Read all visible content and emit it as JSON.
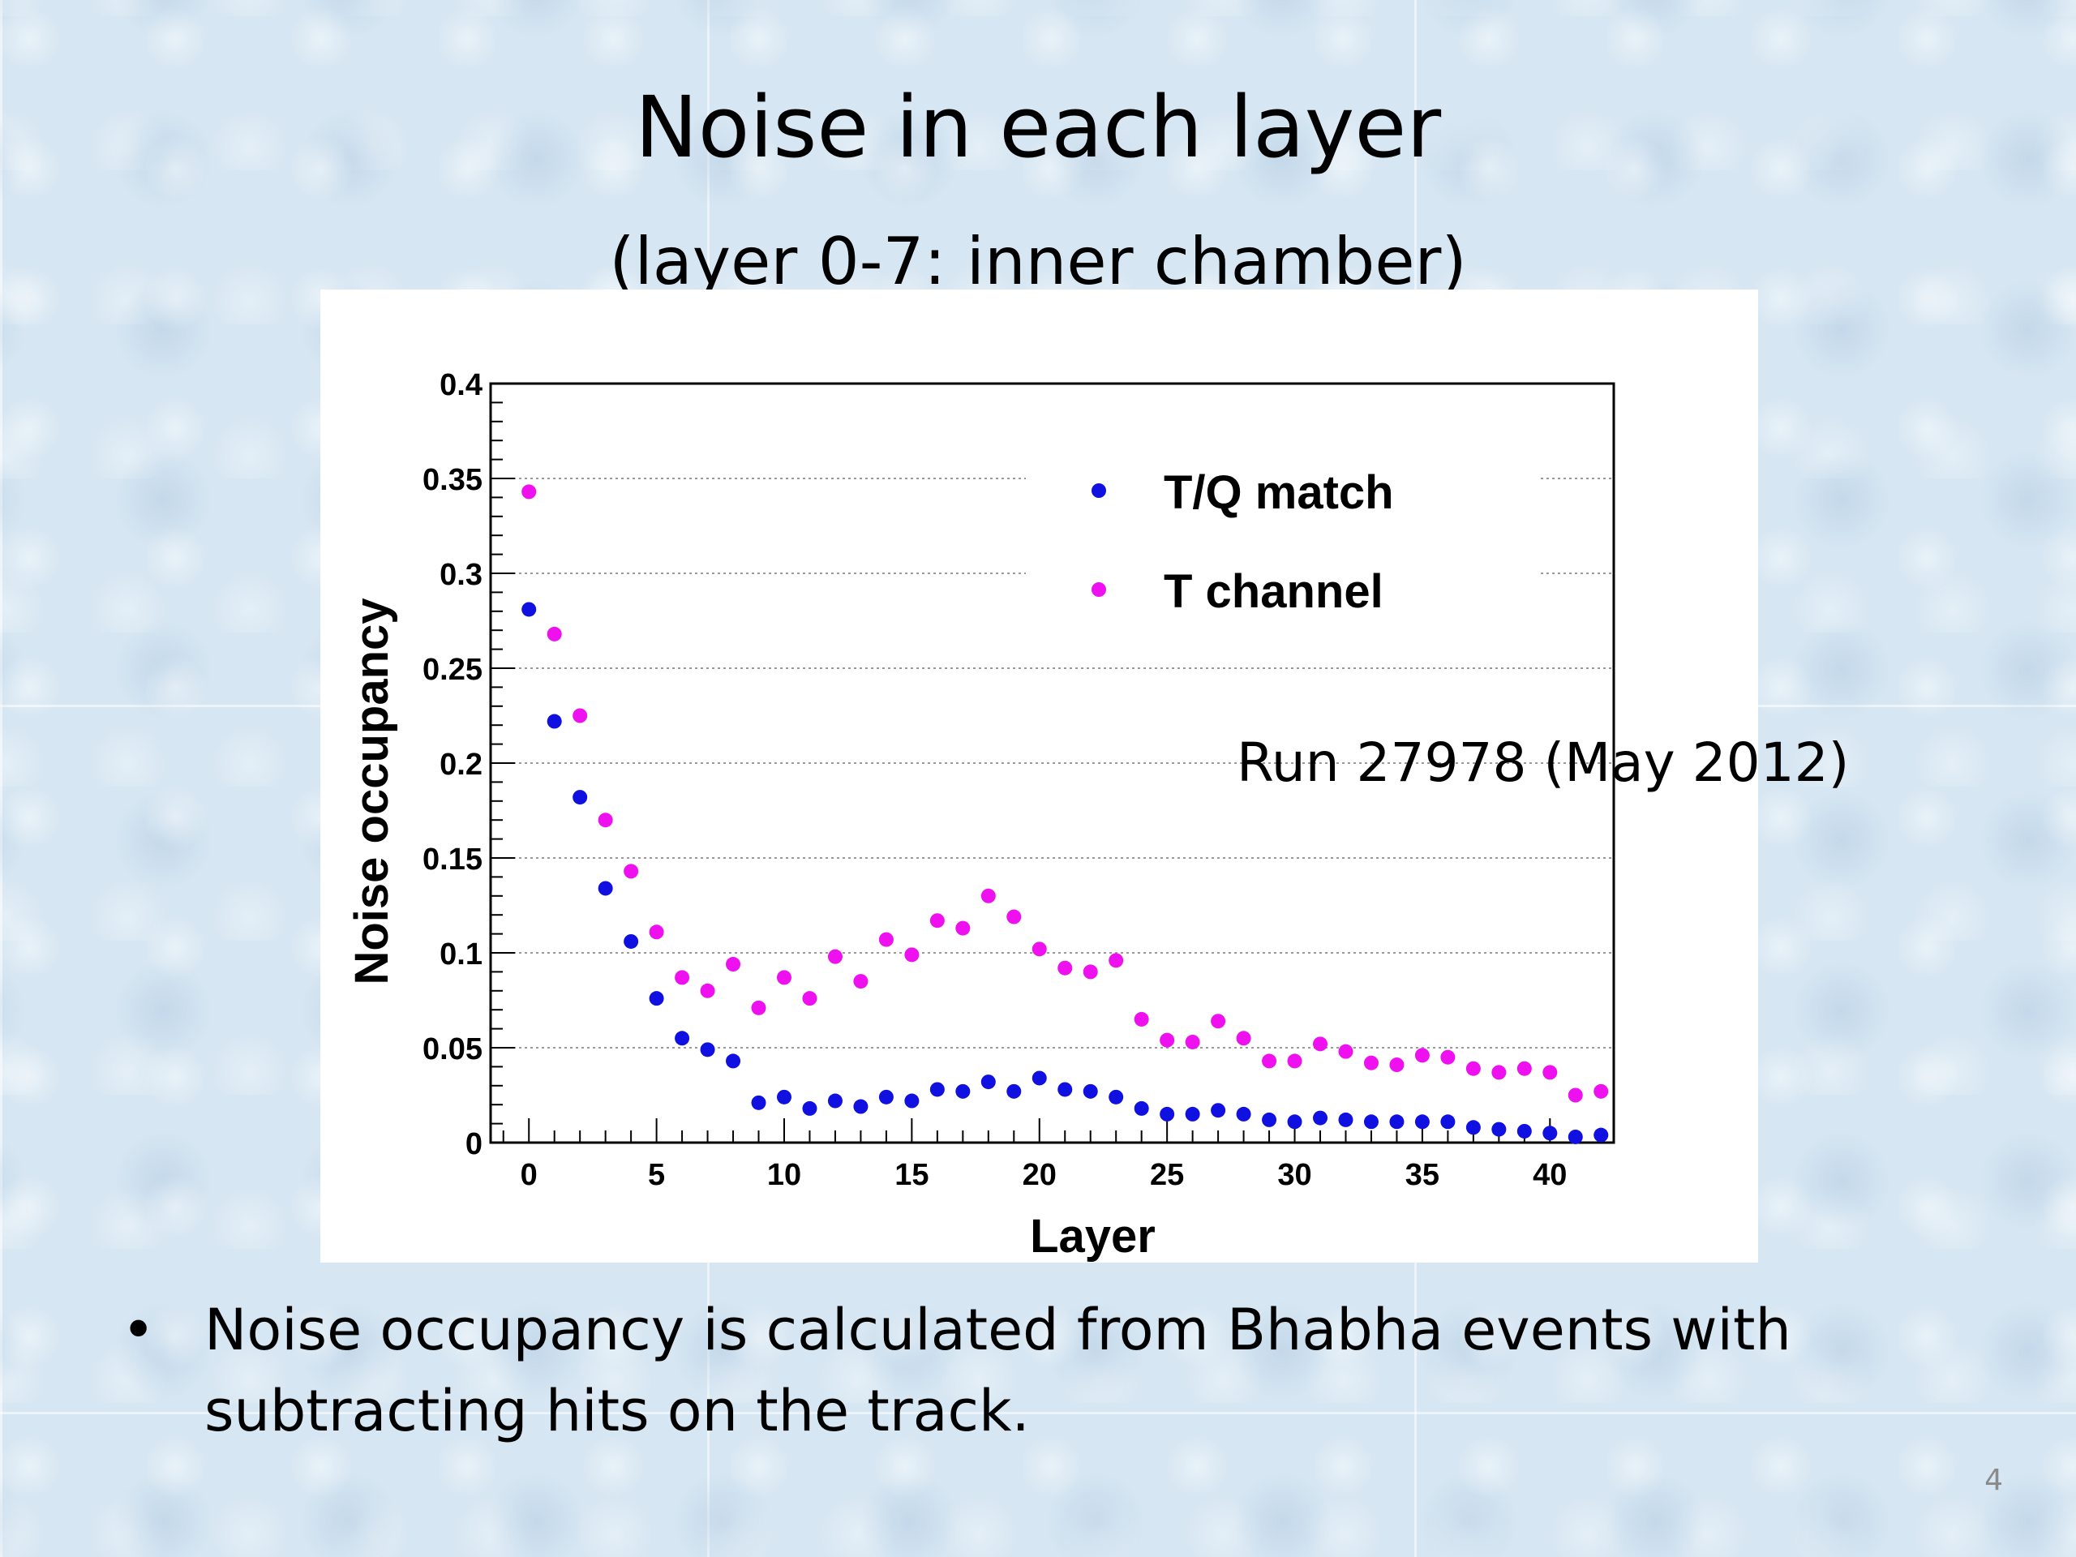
{
  "slide": {
    "title": "Noise in each layer",
    "subtitle": "(layer 0-7: inner chamber)",
    "bullet_marker": "•",
    "bullet_text": "Noise occupancy is calculated from Bhabha events with subtracting hits on the track.",
    "page_number": "4"
  },
  "chart_data": {
    "type": "scatter",
    "title": "",
    "xlabel": "Layer",
    "ylabel": "Noise occupancy",
    "xlim": [
      -1.5,
      42.5
    ],
    "ylim": [
      0,
      0.4
    ],
    "x_ticks": [
      0,
      5,
      10,
      15,
      20,
      25,
      30,
      35,
      40
    ],
    "y_ticks": [
      0,
      0.05,
      0.1,
      0.15,
      0.2,
      0.25,
      0.3,
      0.35,
      0.4
    ],
    "y_tick_labels": [
      "0",
      "0.05",
      "0.1",
      "0.15",
      "0.2",
      "0.25",
      "0.3",
      "0.35",
      "0.4"
    ],
    "grid": "horizontal-dotted",
    "legend_position": "top-right",
    "annotation": "Run 27978 (May 2012)",
    "x": [
      0,
      1,
      2,
      3,
      4,
      5,
      6,
      7,
      8,
      9,
      10,
      11,
      12,
      13,
      14,
      15,
      16,
      17,
      18,
      19,
      20,
      21,
      22,
      23,
      24,
      25,
      26,
      27,
      28,
      29,
      30,
      31,
      32,
      33,
      34,
      35,
      36,
      37,
      38,
      39,
      40,
      41,
      42
    ],
    "series": [
      {
        "name": "T/Q match",
        "color": "#1010e0",
        "values": [
          0.281,
          0.222,
          0.182,
          0.134,
          0.106,
          0.076,
          0.055,
          0.049,
          0.043,
          0.021,
          0.024,
          0.018,
          0.022,
          0.019,
          0.024,
          0.022,
          0.028,
          0.027,
          0.032,
          0.027,
          0.034,
          0.028,
          0.027,
          0.024,
          0.018,
          0.015,
          0.015,
          0.017,
          0.015,
          0.012,
          0.011,
          0.013,
          0.012,
          0.011,
          0.011,
          0.011,
          0.011,
          0.008,
          0.007,
          0.006,
          0.005,
          0.003,
          0.004
        ]
      },
      {
        "name": "T channel",
        "color": "#ee10ee",
        "values": [
          0.343,
          0.268,
          0.225,
          0.17,
          0.143,
          0.111,
          0.087,
          0.08,
          0.094,
          0.071,
          0.087,
          0.076,
          0.098,
          0.085,
          0.107,
          0.099,
          0.117,
          0.113,
          0.13,
          0.119,
          0.102,
          0.092,
          0.09,
          0.096,
          0.065,
          0.054,
          0.053,
          0.064,
          0.055,
          0.043,
          0.043,
          0.052,
          0.048,
          0.042,
          0.041,
          0.046,
          0.045,
          0.039,
          0.037,
          0.039,
          0.037,
          0.025,
          0.027
        ]
      }
    ]
  }
}
